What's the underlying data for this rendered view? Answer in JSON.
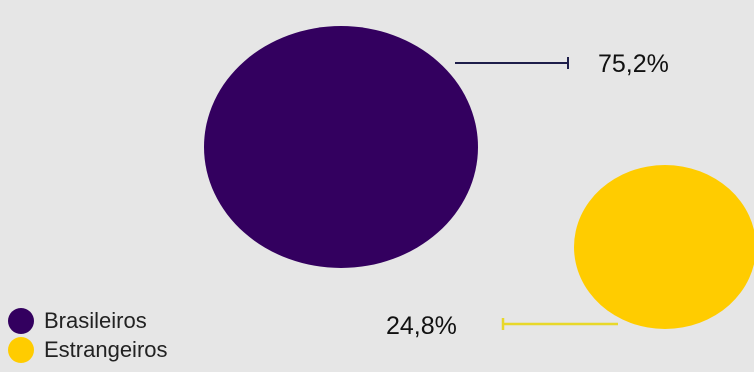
{
  "chart_data": {
    "type": "bubble",
    "series": [
      {
        "name": "Brasileiros",
        "value": 75.2,
        "label": "75,2%",
        "color": "#33005f"
      },
      {
        "name": "Estrangeiros",
        "value": 24.8,
        "label": "24,8%",
        "color": "#ffcc00"
      }
    ],
    "legend_position": "bottom-left"
  },
  "colors": {
    "background": "#e6e6e6",
    "leader_line_1": "#1e1e4a",
    "leader_line_2": "#e8d82a"
  }
}
